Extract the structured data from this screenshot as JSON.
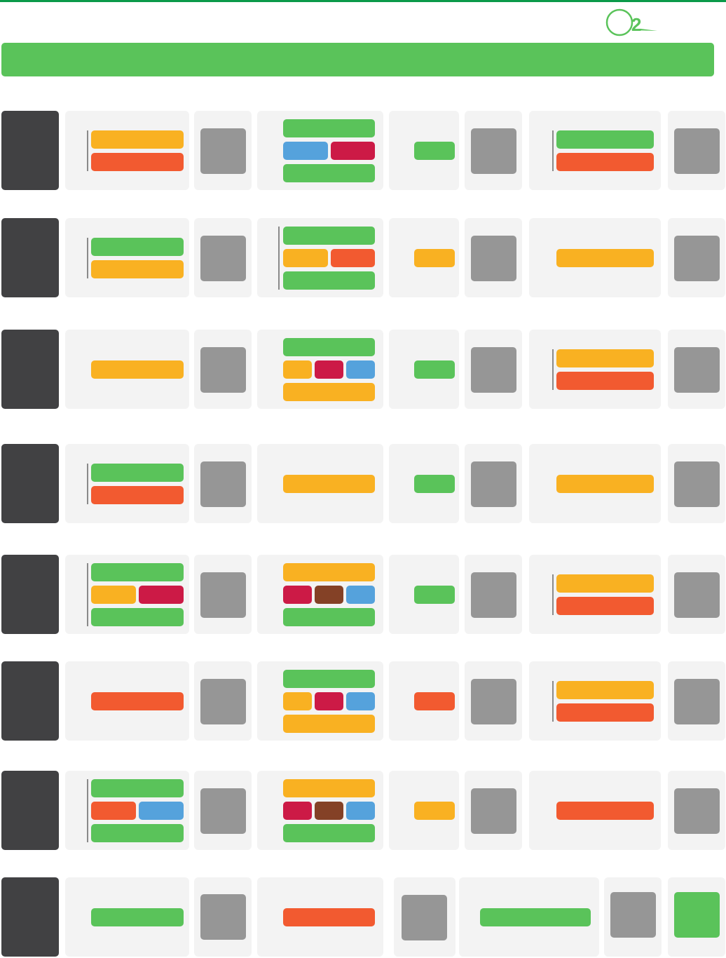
{
  "colors": {
    "top_rule": "#0a9a4a",
    "header_bar": "#5ac35a",
    "logo": "#5ac35a",
    "row_marker": "#414143",
    "panel": "#f3f3f3",
    "placeholder": "#969696",
    "G": "#5ac35a",
    "O": "#f9b122",
    "R": "#f25a30",
    "B": "#55a2dc",
    "C": "#cc1a46",
    "N": "#844126"
  },
  "logo": {
    "text": "2"
  },
  "rows": [
    {
      "c1": {
        "bars": [
          [
            "O"
          ],
          [
            "R"
          ]
        ],
        "divider": true
      },
      "c3": {
        "bars": [
          [
            "G"
          ],
          [
            "B",
            "C"
          ],
          [
            "G"
          ]
        ],
        "divider": false
      },
      "c4": "G",
      "c6": {
        "bars": [
          [
            "G"
          ],
          [
            "R"
          ]
        ],
        "divider": true
      }
    },
    {
      "c1": {
        "bars": [
          [
            "G"
          ],
          [
            "O"
          ]
        ],
        "divider": true
      },
      "c3": {
        "bars": [
          [
            "G"
          ],
          [
            "O",
            "R"
          ],
          [
            "G"
          ]
        ],
        "divider": true
      },
      "c4": "O",
      "c6": {
        "bars": [
          [
            "O"
          ]
        ],
        "divider": false
      }
    },
    {
      "c1": {
        "bars": [
          [
            "O"
          ]
        ],
        "divider": false
      },
      "c3": {
        "bars": [
          [
            "G"
          ],
          [
            "O",
            "C",
            "B"
          ],
          [
            "O"
          ]
        ],
        "divider": false
      },
      "c4": "G",
      "c6": {
        "bars": [
          [
            "O"
          ],
          [
            "R"
          ]
        ],
        "divider": true
      }
    },
    {
      "c1": {
        "bars": [
          [
            "G"
          ],
          [
            "R"
          ]
        ],
        "divider": true
      },
      "c3": {
        "bars": [
          [
            "O"
          ]
        ],
        "divider": false
      },
      "c4": "G",
      "c6": {
        "bars": [
          [
            "O"
          ]
        ],
        "divider": false
      }
    },
    {
      "c1": {
        "bars": [
          [
            "G"
          ],
          [
            "O",
            "C"
          ],
          [
            "G"
          ]
        ],
        "divider": true
      },
      "c3": {
        "bars": [
          [
            "O"
          ],
          [
            "C",
            "N",
            "B"
          ],
          [
            "G"
          ]
        ],
        "divider": false
      },
      "c4": "G",
      "c6": {
        "bars": [
          [
            "O"
          ],
          [
            "R"
          ]
        ],
        "divider": true
      }
    },
    {
      "c1": {
        "bars": [
          [
            "R"
          ]
        ],
        "divider": false
      },
      "c3": {
        "bars": [
          [
            "G"
          ],
          [
            "O",
            "C",
            "B"
          ],
          [
            "O"
          ]
        ],
        "divider": false
      },
      "c4": "R",
      "c6": {
        "bars": [
          [
            "O"
          ],
          [
            "R"
          ]
        ],
        "divider": true
      }
    },
    {
      "c1": {
        "bars": [
          [
            "G"
          ],
          [
            "R",
            "B"
          ],
          [
            "G"
          ]
        ],
        "divider": true
      },
      "c3": {
        "bars": [
          [
            "O"
          ],
          [
            "C",
            "N",
            "B"
          ],
          [
            "G"
          ]
        ],
        "divider": false
      },
      "c4": "O",
      "c6": {
        "bars": [
          [
            "R"
          ]
        ],
        "divider": false
      }
    }
  ],
  "last_row": {
    "c1": "G",
    "c3": "R",
    "c6": "G",
    "final_square": "G"
  }
}
